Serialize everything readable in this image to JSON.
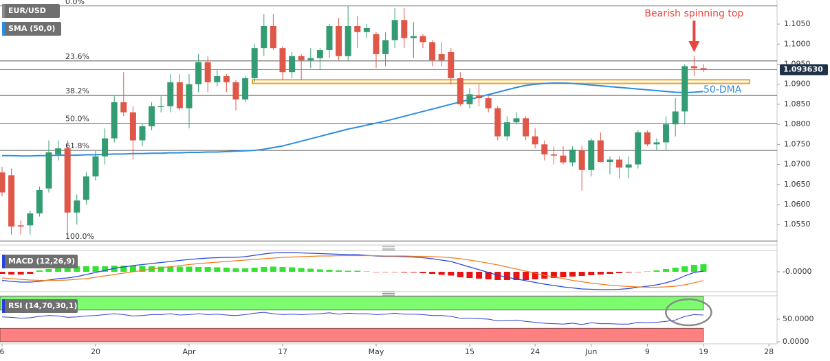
{
  "chart_data": [
    {
      "type": "candlestick",
      "xlim": [
        -0.22,
        82.87
      ],
      "ylim": [
        1.0499,
        1.111
      ],
      "yticks": [
        {
          "value": 1.105,
          "label": "1.1050"
        },
        {
          "value": 1.1,
          "label": "1.1000"
        },
        {
          "value": 1.095,
          "label": "1.0950"
        },
        {
          "value": 1.09,
          "label": "1.0900"
        },
        {
          "value": 1.085,
          "label": "1.0850"
        },
        {
          "value": 1.08,
          "label": "1.0800"
        },
        {
          "value": 1.075,
          "label": "1.0750"
        },
        {
          "value": 1.07,
          "label": "1.0700"
        },
        {
          "value": 1.065,
          "label": "1.0650"
        },
        {
          "value": 1.06,
          "label": "1.0600"
        },
        {
          "value": 1.055,
          "label": "1.0550"
        }
      ],
      "current_price": {
        "value": 1.09363,
        "label": "1.093630"
      },
      "fib_levels": [
        {
          "value": 1.1095,
          "label": "0.0%"
        },
        {
          "value": 1.0958,
          "label": "23.6%"
        },
        {
          "value": 1.0872,
          "label": "38.2%"
        },
        {
          "value": 1.0803,
          "label": "50.0%"
        },
        {
          "value": 1.0735,
          "label": "61.8%"
        },
        {
          "value": 1.0509,
          "label": "100.0%"
        }
      ],
      "support_zone": [
        1.0902,
        1.0911
      ],
      "annotations": [
        {
          "text": "Bearish spinning top",
          "color": "#e8463c"
        },
        {
          "text": "50-DMA",
          "color": "#2f8be0"
        }
      ],
      "series": [
        {
          "name": "EUR/USD",
          "type": "candlestick",
          "up_color": "#349c72",
          "down_color": "#df5748",
          "open": [
            1.068,
            1.0673,
            1.0548,
            1.0548,
            1.0578,
            1.064,
            1.0725,
            1.074,
            1.058,
            1.0612,
            1.067,
            1.072,
            1.0765,
            1.0855,
            1.083,
            1.076,
            1.0795,
            1.0843,
            1.0845,
            1.0905,
            1.084,
            1.09,
            1.0955,
            1.0905,
            1.092,
            1.0905,
            1.0862,
            1.0915,
            1.099,
            1.1045,
            1.099,
            1.093,
            1.097,
            1.096,
            1.0965,
            1.0985,
            1.1045,
            1.097,
            1.1045,
            1.103,
            1.1025,
            1.0975,
            1.101,
            1.106,
            1.1015,
            1.102,
            1.1005,
            1.0975,
            1.098,
            1.0915,
            1.085,
            1.0873,
            1.0865,
            1.084,
            1.077,
            1.0805,
            1.0815,
            1.077,
            1.075,
            1.0725,
            1.0722,
            1.0705,
            1.0735,
            1.0686,
            1.076,
            1.0706,
            1.0712,
            1.0692,
            1.07,
            1.078,
            1.075,
            1.0755,
            1.08,
            1.0832,
            1.0945,
            1.094
          ],
          "high": [
            1.0694,
            1.069,
            1.056,
            1.0585,
            1.0645,
            1.076,
            1.076,
            1.076,
            1.0625,
            1.068,
            1.0735,
            1.079,
            1.087,
            1.093,
            1.0845,
            1.08,
            1.0855,
            1.087,
            1.0925,
            1.0925,
            1.0925,
            1.0975,
            1.097,
            1.0935,
            1.0925,
            1.091,
            1.092,
            1.1,
            1.1075,
            1.1075,
            1.0995,
            1.098,
            1.0975,
            1.099,
            1.099,
            1.105,
            1.1065,
            1.1095,
            1.107,
            1.105,
            1.103,
            1.103,
            1.109,
            1.109,
            1.1055,
            1.1025,
            1.101,
            1.1005,
            1.099,
            1.093,
            1.089,
            1.09,
            1.087,
            1.0845,
            1.082,
            1.083,
            1.082,
            1.079,
            1.076,
            1.0745,
            1.0745,
            1.0745,
            1.0746,
            1.0765,
            1.078,
            1.072,
            1.072,
            1.072,
            1.0785,
            1.0785,
            1.0765,
            1.082,
            1.0865,
            1.095,
            1.097,
            1.095
          ],
          "low": [
            1.062,
            1.0525,
            1.0525,
            1.0525,
            1.057,
            1.063,
            1.071,
            1.0515,
            1.055,
            1.06,
            1.066,
            1.07,
            1.0755,
            1.082,
            1.0712,
            1.0745,
            1.0785,
            1.083,
            1.083,
            1.0835,
            1.079,
            1.088,
            1.088,
            1.0895,
            1.088,
            1.0835,
            1.0855,
            1.0905,
            1.097,
            1.0985,
            1.091,
            1.0915,
            1.091,
            1.094,
            1.0935,
            1.0965,
            1.096,
            1.096,
            1.099,
            1.1015,
            1.094,
            1.0945,
            1.099,
            1.099,
            1.0965,
            1.099,
            1.0945,
            1.0945,
            1.09,
            1.0845,
            1.084,
            1.0845,
            1.083,
            1.076,
            1.076,
            1.08,
            1.076,
            1.074,
            1.071,
            1.07,
            1.07,
            1.0695,
            1.0635,
            1.067,
            1.0705,
            1.0675,
            1.0665,
            1.0665,
            1.069,
            1.0745,
            1.0735,
            1.0735,
            1.077,
            1.08,
            1.092,
            1.093
          ],
          "close": [
            1.063,
            1.0545,
            1.0545,
            1.0578,
            1.0636,
            1.073,
            1.074,
            1.058,
            1.061,
            1.067,
            1.072,
            1.0765,
            1.0855,
            1.083,
            1.076,
            1.0795,
            1.0845,
            1.0845,
            1.0905,
            1.084,
            1.09,
            1.0955,
            1.0905,
            1.092,
            1.0905,
            1.0862,
            1.0915,
            1.099,
            1.1045,
            1.099,
            1.093,
            1.097,
            1.096,
            1.0965,
            1.0985,
            1.1045,
            1.097,
            1.1045,
            1.103,
            1.104,
            1.0975,
            1.101,
            1.106,
            1.1015,
            1.102,
            1.1005,
            1.096,
            1.096,
            1.0915,
            1.085,
            1.0875,
            1.0865,
            1.084,
            1.077,
            1.0805,
            1.0815,
            1.077,
            1.075,
            1.0725,
            1.0722,
            1.0705,
            1.0737,
            1.0686,
            1.076,
            1.0706,
            1.0712,
            1.0692,
            1.07,
            1.078,
            1.075,
            1.0755,
            1.08,
            1.0832,
            1.0945,
            1.094,
            1.0936
          ]
        },
        {
          "name": "SMA (50,0)",
          "type": "line",
          "color": "#2c8de0",
          "values": [
            1.0722,
            1.0722,
            1.0721,
            1.0721,
            1.0722,
            1.0722,
            1.0723,
            1.0723,
            1.0723,
            1.0724,
            1.0724,
            1.0725,
            1.0726,
            1.0726,
            1.0727,
            1.0727,
            1.0728,
            1.0728,
            1.0729,
            1.0729,
            1.073,
            1.073,
            1.0731,
            1.0731,
            1.0732,
            1.0733,
            1.0734,
            1.0735,
            1.0738,
            1.0742,
            1.0746,
            1.0752,
            1.0758,
            1.0764,
            1.077,
            1.0776,
            1.0782,
            1.0788,
            1.0793,
            1.0798,
            1.0803,
            1.0808,
            1.0814,
            1.082,
            1.0826,
            1.0832,
            1.0838,
            1.0844,
            1.085,
            1.0856,
            1.0862,
            1.0868,
            1.0874,
            1.088,
            1.0886,
            1.0892,
            1.0897,
            1.09,
            1.0902,
            1.0903,
            1.0903,
            1.0902,
            1.09,
            1.0898,
            1.0896,
            1.0894,
            1.0892,
            1.089,
            1.0888,
            1.0886,
            1.0884,
            1.0882,
            1.088,
            1.0879,
            1.088,
            1.0882
          ]
        }
      ]
    },
    {
      "type": "macd",
      "title": "MACD (12,26,9)",
      "ylim": [
        -0.0058,
        0.0062
      ],
      "yticks": [
        {
          "value": 0,
          "label": "-0.0000"
        }
      ],
      "histogram": {
        "up_color": "#33e233",
        "down_color": "#e81414",
        "values": [
          -0.0006,
          -0.0008,
          -0.0008,
          -0.0006,
          0.0004,
          0.0008,
          0.0012,
          0.0014,
          0.0016,
          0.0016,
          0.0016,
          0.0016,
          0.0018,
          0.0018,
          0.0018,
          0.0017,
          0.0016,
          0.0015,
          0.0015,
          0.0015,
          0.0015,
          0.0014,
          0.0014,
          0.0013,
          0.0012,
          0.001,
          0.001,
          0.0012,
          0.0014,
          0.0015,
          0.0014,
          0.0013,
          0.0011,
          0.0009,
          0.0007,
          0.0006,
          0.0004,
          0.0003,
          0.0003,
          0.0001,
          -0.0001,
          -0.0001,
          -0.0001,
          -0.0002,
          -0.0002,
          -0.0004,
          -0.0006,
          -0.0009,
          -0.0011,
          -0.0016,
          -0.0018,
          -0.002,
          -0.0022,
          -0.0024,
          -0.0024,
          -0.0024,
          -0.0024,
          -0.0022,
          -0.002,
          -0.0018,
          -0.0016,
          -0.0014,
          -0.0012,
          -0.001,
          -0.0008,
          -0.0006,
          -0.0004,
          -0.0002,
          -0.0001,
          0.0001,
          0.0004,
          0.0008,
          0.0012,
          0.0016,
          0.002,
          0.0022
        ]
      },
      "series": [
        {
          "color": "#2546d6",
          "values": [
            -0.0025,
            -0.0028,
            -0.003,
            -0.003,
            -0.0028,
            -0.0024,
            -0.002,
            -0.0018,
            -0.0014,
            -0.0008,
            -0.0002,
            0.0004,
            0.001,
            0.0014,
            0.0018,
            0.0021,
            0.0024,
            0.0027,
            0.003,
            0.0033,
            0.0036,
            0.0038,
            0.004,
            0.0041,
            0.0042,
            0.0042,
            0.0044,
            0.0048,
            0.0052,
            0.0055,
            0.0056,
            0.0056,
            0.0055,
            0.0054,
            0.0053,
            0.0052,
            0.0051,
            0.005,
            0.005,
            0.0048,
            0.0046,
            0.0045,
            0.0045,
            0.0044,
            0.0043,
            0.0041,
            0.0038,
            0.0034,
            0.003,
            0.0022,
            0.0014,
            0.0006,
            -0.0002,
            -0.001,
            -0.0016,
            -0.0021,
            -0.0026,
            -0.0031,
            -0.0036,
            -0.004,
            -0.0044,
            -0.0047,
            -0.005,
            -0.0051,
            -0.0052,
            -0.0052,
            -0.0051,
            -0.0049,
            -0.0045,
            -0.0042,
            -0.0038,
            -0.0032,
            -0.0024,
            -0.0012,
            -0.0002,
            0.0002
          ]
        },
        {
          "color": "#f07c22",
          "values": [
            -0.0018,
            -0.002,
            -0.0022,
            -0.0024,
            -0.0025,
            -0.0025,
            -0.0025,
            -0.0024,
            -0.0022,
            -0.002,
            -0.0016,
            -0.0012,
            -0.0008,
            -0.0004,
            0.0,
            0.0004,
            0.0008,
            0.0012,
            0.0015,
            0.0018,
            0.0021,
            0.0024,
            0.0026,
            0.0028,
            0.003,
            0.0032,
            0.0034,
            0.0036,
            0.0038,
            0.004,
            0.0042,
            0.0043,
            0.0044,
            0.0045,
            0.0046,
            0.0046,
            0.0047,
            0.0047,
            0.0047,
            0.0047,
            0.0047,
            0.0046,
            0.0046,
            0.0046,
            0.0045,
            0.0045,
            0.0044,
            0.0043,
            0.0041,
            0.0038,
            0.0034,
            0.003,
            0.0025,
            0.002,
            0.0014,
            0.0008,
            0.0002,
            -0.0004,
            -0.001,
            -0.0015,
            -0.002,
            -0.0025,
            -0.0029,
            -0.0033,
            -0.0036,
            -0.0039,
            -0.0041,
            -0.0043,
            -0.0044,
            -0.0045,
            -0.0045,
            -0.0044,
            -0.0042,
            -0.0038,
            -0.0032,
            -0.0026
          ]
        }
      ]
    },
    {
      "type": "line",
      "title": "RSI (14,70,30,1)",
      "ylim": [
        0,
        100
      ],
      "yticks": [
        {
          "value": 50,
          "label": "50.0000"
        },
        {
          "value": 0,
          "label": "0.0000"
        }
      ],
      "bands": [
        {
          "from": 70,
          "to": 100,
          "color": "#7dfc6f"
        },
        {
          "from": 0,
          "to": 30,
          "color": "#ff8080"
        }
      ],
      "xticks": [
        {
          "value": 0,
          "label": "6"
        },
        {
          "value": 10,
          "label": "20"
        },
        {
          "value": 20,
          "label": "Apr"
        },
        {
          "value": 30,
          "label": "17"
        },
        {
          "value": 40,
          "label": "May"
        },
        {
          "value": 50,
          "label": "15"
        },
        {
          "value": 57,
          "label": "24"
        },
        {
          "value": 63,
          "label": "Jun"
        },
        {
          "value": 69,
          "label": "9"
        },
        {
          "value": 75,
          "label": "19"
        },
        {
          "value": 82,
          "label": "28"
        }
      ],
      "series": [
        {
          "color": "#2a3fd6",
          "values": [
            55,
            54,
            52,
            53,
            56,
            58,
            57,
            54,
            55,
            57,
            58,
            60,
            62,
            60,
            57,
            58,
            60,
            60,
            62,
            59,
            60,
            62,
            60,
            61,
            59,
            58,
            60,
            63,
            65,
            62,
            60,
            61,
            60,
            61,
            62,
            64,
            61,
            63,
            62,
            62,
            60,
            61,
            63,
            61,
            61,
            60,
            58,
            58,
            56,
            52,
            52,
            51,
            50,
            46,
            47,
            48,
            45,
            43,
            41,
            40,
            39,
            41,
            38,
            42,
            40,
            40,
            39,
            39,
            43,
            42,
            43,
            45,
            48,
            56,
            60,
            59
          ]
        }
      ]
    }
  ]
}
